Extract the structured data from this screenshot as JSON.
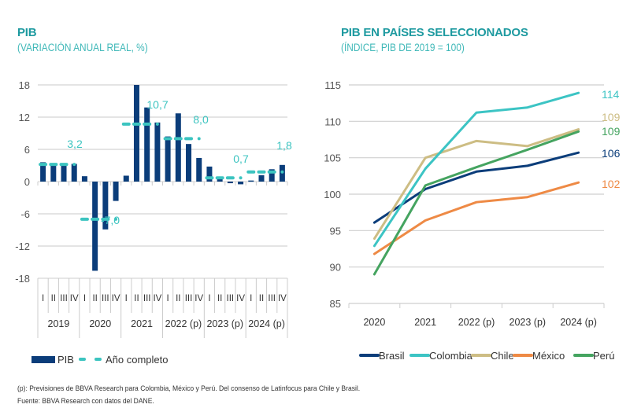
{
  "left_chart": {
    "title": "PIB",
    "subtitle": "(VARIACIÓN ANUAL REAL, %)"
  },
  "right_chart": {
    "title": "PIB EN PAÍSES SELECCIONADOS",
    "subtitle": "(ÍNDICE, PIB DE 2019 = 100)"
  },
  "footnotes": {
    "note": "(p): Previsiones de BBVA Research para Colombia, México y Perú. Del consenso de Latinfocus para Chile y Brasil.",
    "source": "Fuente: BBVA Research con datos del DANE."
  },
  "chart_data": [
    {
      "type": "bar",
      "title": "PIB",
      "subtitle": "(VARIACIÓN ANUAL REAL, %)",
      "ylim": [
        -18,
        18
      ],
      "yticks": [
        "18",
        "12",
        "6",
        "0",
        "-6",
        "-12",
        "-18"
      ],
      "ytick_values": [
        18,
        12,
        6,
        0,
        -6,
        -12,
        -18
      ],
      "grid": true,
      "quarters": [
        "I",
        "II",
        "III",
        "IV",
        "I",
        "II",
        "III",
        "IV",
        "I",
        "II",
        "III",
        "IV",
        "I",
        "II",
        "III",
        "IV",
        "I",
        "II",
        "III",
        "IV",
        "I",
        "II",
        "III",
        "IV"
      ],
      "years": [
        "2019",
        "2020",
        "2021",
        "2022 (p)",
        "2023 (p)",
        "2024 (p)"
      ],
      "series": [
        {
          "name": "PIB",
          "color": "#0b3d7a",
          "kind": "bar",
          "values": [
            3.6,
            3.0,
            3.0,
            3.3,
            1.0,
            -16.6,
            -8.9,
            -3.6,
            1.1,
            18.0,
            13.8,
            11.0,
            8.4,
            12.7,
            7.0,
            4.4,
            2.8,
            0.9,
            -0.3,
            -0.5,
            0.2,
            1.2,
            2.3,
            3.1
          ]
        },
        {
          "name": "Año completo",
          "color": "#3cc4c0",
          "kind": "dashed",
          "values": [
            3.2,
            -7.0,
            10.7,
            8.0,
            0.7,
            1.8
          ],
          "labels": [
            "3,2",
            "-7,0",
            "10,7",
            "8,0",
            "0,7",
            "1,8"
          ]
        }
      ],
      "legend": [
        "PIB",
        "Año completo"
      ],
      "legend_position": "bottom"
    },
    {
      "type": "line",
      "title": "PIB EN PAÍSES SELECCIONADOS",
      "subtitle": "(ÍNDICE, PIB DE 2019 = 100)",
      "categories": [
        "2020",
        "2021",
        "2022 (p)",
        "2023 (p)",
        "2024 (p)"
      ],
      "ylim": [
        85,
        115
      ],
      "yticks": [
        "115",
        "110",
        "105",
        "100",
        "95",
        "90",
        "85"
      ],
      "ytick_values": [
        115,
        110,
        105,
        100,
        95,
        90,
        85
      ],
      "grid": true,
      "series": [
        {
          "name": "Brasil",
          "color": "#0b3d7a",
          "values": [
            96.1,
            100.7,
            103.1,
            103.9,
            105.7
          ],
          "end_label": "106"
        },
        {
          "name": "Colombia",
          "color": "#3cc4c4",
          "values": [
            92.9,
            103.5,
            111.2,
            111.9,
            113.9
          ],
          "end_label": "114"
        },
        {
          "name": "Chile",
          "color": "#cdbd84",
          "values": [
            93.9,
            105.0,
            107.3,
            106.6,
            108.9
          ],
          "end_label": "109"
        },
        {
          "name": "México",
          "color": "#ee8a45",
          "values": [
            91.8,
            96.4,
            98.9,
            99.6,
            101.6
          ],
          "end_label": "102"
        },
        {
          "name": "Perú",
          "color": "#45a460",
          "values": [
            89.0,
            101.2,
            103.7,
            106.1,
            108.6
          ],
          "end_label": "109"
        }
      ],
      "legend_position": "bottom"
    }
  ]
}
